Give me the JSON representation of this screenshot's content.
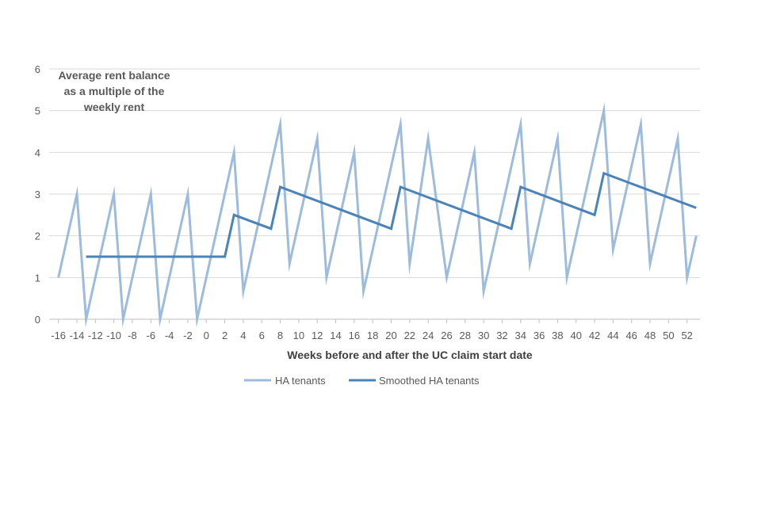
{
  "chart_data": {
    "type": "line",
    "ylabel_lines": [
      "Average rent balance",
      "as a multiple of the",
      "weekly rent"
    ],
    "xlabel": "Weeks before and after the UC claim start date",
    "xlim": [
      -17,
      53.4
    ],
    "ylim": [
      0,
      6
    ],
    "yticks": [
      0,
      1,
      2,
      3,
      4,
      5,
      6
    ],
    "xticks": [
      -16,
      -14,
      -12,
      -10,
      -8,
      -6,
      -4,
      -2,
      0,
      2,
      4,
      6,
      8,
      10,
      12,
      14,
      16,
      18,
      20,
      22,
      24,
      26,
      28,
      30,
      32,
      34,
      36,
      38,
      40,
      42,
      44,
      46,
      48,
      50,
      52
    ],
    "grid": "horizontal",
    "legend_position": "bottom",
    "series": [
      {
        "name": "HA tenants",
        "color": "#9dbbdd",
        "x": [
          -16,
          -14,
          -13,
          -10,
          -9,
          -6,
          -5,
          -2,
          -1,
          3,
          4,
          8,
          9,
          12,
          13,
          16,
          17,
          21,
          22,
          24,
          26,
          29,
          30,
          34,
          35,
          38,
          39,
          43,
          44,
          47,
          48,
          51,
          52,
          53
        ],
        "y": [
          1,
          3,
          0,
          3,
          0,
          3,
          0,
          3,
          0,
          4,
          0.67,
          4.67,
          1.33,
          4.33,
          1,
          4,
          0.67,
          4.67,
          1.33,
          4.33,
          1,
          4,
          0.67,
          4.67,
          1.33,
          4.33,
          1,
          5,
          1.67,
          4.67,
          1.33,
          4.33,
          1,
          2
        ]
      },
      {
        "name": "Smoothed HA tenants",
        "color": "#4a83b8",
        "x": [
          -13,
          2,
          3,
          7,
          8,
          20,
          21,
          33,
          34,
          42,
          43,
          53
        ],
        "y": [
          1.5,
          1.5,
          2.5,
          2.17,
          3.17,
          2.17,
          3.17,
          2.17,
          3.17,
          2.5,
          3.5,
          2.67
        ]
      }
    ]
  }
}
